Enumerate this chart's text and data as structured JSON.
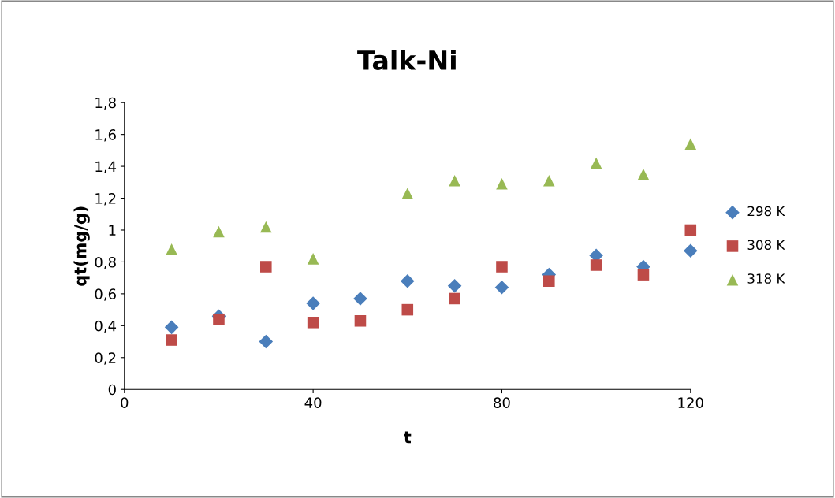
{
  "chart_data": {
    "type": "scatter",
    "title": "Talk-Ni",
    "xlabel": "t",
    "ylabel": "qt(mg/g)",
    "x": [
      10,
      20,
      30,
      40,
      50,
      60,
      70,
      80,
      90,
      100,
      110,
      120
    ],
    "xlim": [
      0,
      120
    ],
    "xticks": [
      0,
      40,
      80,
      120
    ],
    "ylim": [
      0,
      1.8
    ],
    "yticks": [
      {
        "value": 0,
        "label": "0"
      },
      {
        "value": 0.2,
        "label": "0,2"
      },
      {
        "value": 0.4,
        "label": "0,4"
      },
      {
        "value": 0.6,
        "label": "0,6"
      },
      {
        "value": 0.8,
        "label": "0,8"
      },
      {
        "value": 1,
        "label": "1"
      },
      {
        "value": 1.2,
        "label": "1,2"
      },
      {
        "value": 1.4,
        "label": "1,4"
      },
      {
        "value": 1.6,
        "label": "1,6"
      },
      {
        "value": 1.8,
        "label": "1,8"
      }
    ],
    "grid": false,
    "legend": "right",
    "series": [
      {
        "name": "298 K",
        "color": "#4a7ebb",
        "marker": "diamond",
        "values": [
          0.39,
          0.46,
          0.3,
          0.54,
          0.57,
          0.68,
          0.65,
          0.64,
          0.72,
          0.84,
          0.77,
          0.87
        ]
      },
      {
        "name": "308 K",
        "color": "#be4b48",
        "marker": "square",
        "values": [
          0.31,
          0.44,
          0.77,
          0.42,
          0.43,
          0.5,
          0.57,
          0.77,
          0.68,
          0.78,
          0.72,
          1.0
        ]
      },
      {
        "name": "318 K",
        "color": "#98b954",
        "marker": "triangle",
        "values": [
          0.88,
          0.99,
          1.02,
          0.82,
          null,
          1.23,
          1.31,
          1.29,
          1.31,
          1.42,
          1.35,
          1.54
        ]
      }
    ]
  }
}
